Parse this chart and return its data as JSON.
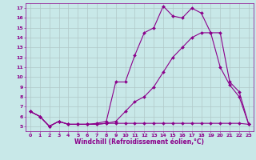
{
  "background_color": "#c8e8e8",
  "grid_color": "#b0c8c8",
  "line_color": "#8b008b",
  "marker": "D",
  "markersize": 2,
  "linewidth": 0.8,
  "xlim": [
    -0.5,
    23.5
  ],
  "ylim": [
    4.5,
    17.5
  ],
  "xticks": [
    0,
    1,
    2,
    3,
    4,
    5,
    6,
    7,
    8,
    9,
    10,
    11,
    12,
    13,
    14,
    15,
    16,
    17,
    18,
    19,
    20,
    21,
    22,
    23
  ],
  "yticks": [
    5,
    6,
    7,
    8,
    9,
    10,
    11,
    12,
    13,
    14,
    15,
    16,
    17
  ],
  "xlabel": "Windchill (Refroidissement éolien,°C)",
  "xlabel_fontsize": 5.5,
  "tick_fontsize": 4.5,
  "series": [
    {
      "x": [
        0,
        1,
        2,
        3,
        4,
        5,
        6,
        7,
        8,
        9,
        10,
        11,
        12,
        13,
        14,
        15,
        16,
        17,
        18,
        19,
        20,
        21,
        22,
        23
      ],
      "y": [
        6.5,
        6.0,
        5.0,
        5.5,
        5.2,
        5.2,
        5.2,
        5.3,
        5.5,
        9.5,
        9.5,
        12.2,
        14.5,
        15.0,
        17.2,
        16.2,
        16.0,
        17.0,
        16.5,
        14.5,
        11.0,
        9.2,
        8.0,
        5.2
      ]
    },
    {
      "x": [
        0,
        1,
        2,
        3,
        4,
        5,
        6,
        7,
        8,
        9,
        10,
        11,
        12,
        13,
        14,
        15,
        16,
        17,
        18,
        19,
        20,
        21,
        22,
        23
      ],
      "y": [
        6.5,
        6.0,
        5.0,
        5.5,
        5.2,
        5.2,
        5.2,
        5.2,
        5.3,
        5.3,
        5.3,
        5.3,
        5.3,
        5.3,
        5.3,
        5.3,
        5.3,
        5.3,
        5.3,
        5.3,
        5.3,
        5.3,
        5.3,
        5.2
      ]
    },
    {
      "x": [
        0,
        1,
        2,
        3,
        4,
        5,
        6,
        7,
        8,
        9,
        10,
        11,
        12,
        13,
        14,
        15,
        16,
        17,
        18,
        19,
        20,
        21,
        22,
        23
      ],
      "y": [
        6.5,
        6.0,
        5.0,
        5.5,
        5.2,
        5.2,
        5.2,
        5.2,
        5.3,
        5.5,
        6.5,
        7.5,
        8.0,
        9.0,
        10.5,
        12.0,
        13.0,
        14.0,
        14.5,
        14.5,
        14.5,
        9.5,
        8.5,
        5.2
      ]
    }
  ]
}
